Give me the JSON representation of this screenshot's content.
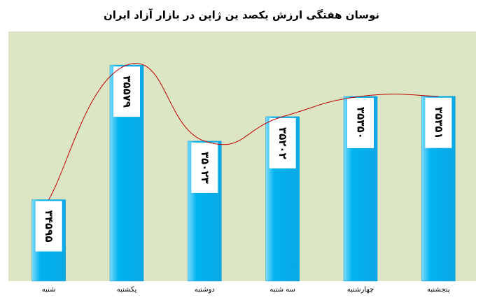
{
  "chart_data": {
    "type": "bar",
    "title": "نوسان هفتگی ارزش یکصد ین ژاپن در بازار آزاد ایران",
    "categories": [
      "شنبه",
      "یکشنبه",
      "دوشنبه",
      "سه شنبه",
      "چهارشنبه",
      "پنجشنبه"
    ],
    "values": [
      34595,
      35579,
      35023,
      35202,
      35350,
      35351
    ],
    "value_labels": [
      "۳۴۵۹۵",
      "۳۵۵۷۹",
      "۳۵۰۲۳",
      "۳۵۲۰۲",
      "۳۵۳۵۰",
      "۳۵۳۵۱"
    ],
    "color": "#00b4f0",
    "curve_color": "#c00000",
    "ylim": [
      34000,
      35825
    ]
  }
}
